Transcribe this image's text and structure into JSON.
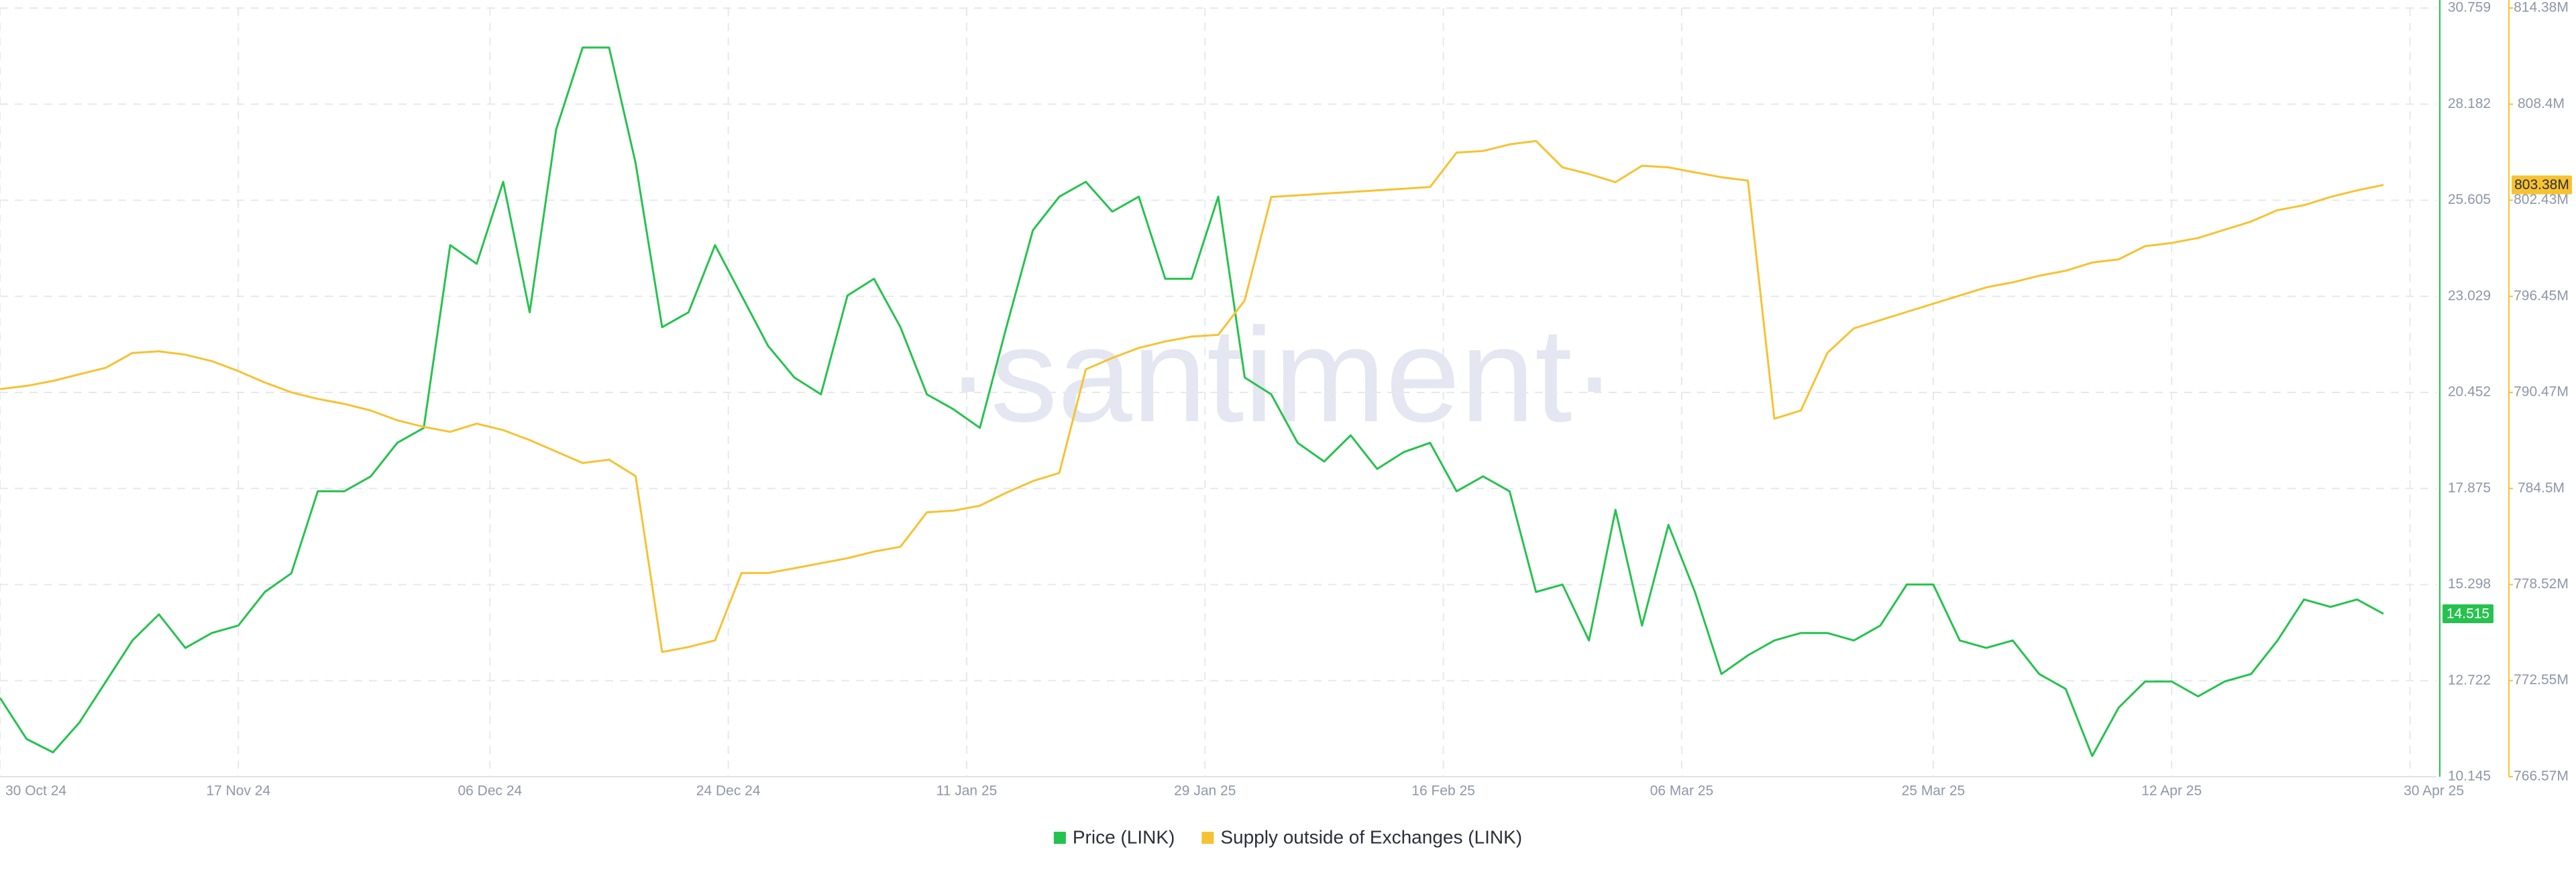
{
  "chart_data": {
    "type": "line",
    "watermark": "·santiment·",
    "x": [
      "2024-10-30",
      "2024-11-01",
      "2024-11-03",
      "2024-11-05",
      "2024-11-07",
      "2024-11-09",
      "2024-11-11",
      "2024-11-13",
      "2024-11-15",
      "2024-11-17",
      "2024-11-19",
      "2024-11-21",
      "2024-11-23",
      "2024-11-25",
      "2024-11-27",
      "2024-11-29",
      "2024-12-01",
      "2024-12-03",
      "2024-12-05",
      "2024-12-07",
      "2024-12-09",
      "2024-12-11",
      "2024-12-13",
      "2024-12-15",
      "2024-12-17",
      "2024-12-19",
      "2024-12-21",
      "2024-12-23",
      "2024-12-25",
      "2024-12-27",
      "2024-12-29",
      "2024-12-31",
      "2025-01-02",
      "2025-01-04",
      "2025-01-06",
      "2025-01-08",
      "2025-01-10",
      "2025-01-12",
      "2025-01-14",
      "2025-01-16",
      "2025-01-18",
      "2025-01-20",
      "2025-01-22",
      "2025-01-24",
      "2025-01-26",
      "2025-01-28",
      "2025-01-30",
      "2025-02-01",
      "2025-02-03",
      "2025-02-05",
      "2025-02-07",
      "2025-02-09",
      "2025-02-11",
      "2025-02-13",
      "2025-02-15",
      "2025-02-17",
      "2025-02-19",
      "2025-02-21",
      "2025-02-23",
      "2025-02-25",
      "2025-02-27",
      "2025-03-01",
      "2025-03-03",
      "2025-03-05",
      "2025-03-07",
      "2025-03-09",
      "2025-03-11",
      "2025-03-13",
      "2025-03-15",
      "2025-03-17",
      "2025-03-19",
      "2025-03-21",
      "2025-03-23",
      "2025-03-25",
      "2025-03-27",
      "2025-03-29",
      "2025-03-31",
      "2025-04-02",
      "2025-04-04",
      "2025-04-06",
      "2025-04-08",
      "2025-04-10",
      "2025-04-12",
      "2025-04-14",
      "2025-04-16",
      "2025-04-18",
      "2025-04-20",
      "2025-04-22",
      "2025-04-24",
      "2025-04-26",
      "2025-04-28"
    ],
    "xlim": [
      "2024-10-30",
      "2025-05-02"
    ],
    "xticks": [
      {
        "value": "2024-10-30",
        "label": "30 Oct 24"
      },
      {
        "value": "2024-11-17",
        "label": "17 Nov 24"
      },
      {
        "value": "2024-12-06",
        "label": "06 Dec 24"
      },
      {
        "value": "2024-12-24",
        "label": "24 Dec 24"
      },
      {
        "value": "2025-01-11",
        "label": "11 Jan 25"
      },
      {
        "value": "2025-01-29",
        "label": "29 Jan 25"
      },
      {
        "value": "2025-02-16",
        "label": "16 Feb 25"
      },
      {
        "value": "2025-03-06",
        "label": "06 Mar 25"
      },
      {
        "value": "2025-03-25",
        "label": "25 Mar 25"
      },
      {
        "value": "2025-04-12",
        "label": "12 Apr 25"
      },
      {
        "value": "2025-04-30",
        "label": "30 Apr 25"
      }
    ],
    "ylim": [
      10.145,
      30.759
    ],
    "yticks": [
      10.145,
      12.722,
      15.298,
      17.875,
      20.452,
      23.029,
      25.605,
      28.182,
      30.759
    ],
    "y2lim": [
      766.57,
      814.38
    ],
    "y2ticks": [
      {
        "value": 766.57,
        "label": "766.57M"
      },
      {
        "value": 772.55,
        "label": "772.55M"
      },
      {
        "value": 778.52,
        "label": "778.52M"
      },
      {
        "value": 784.5,
        "label": "784.5M"
      },
      {
        "value": 790.47,
        "label": "790.47M"
      },
      {
        "value": 796.45,
        "label": "796.45M"
      },
      {
        "value": 802.43,
        "label": "802.43M"
      },
      {
        "value": 808.4,
        "label": "808.4M"
      },
      {
        "value": 814.38,
        "label": "814.38M"
      }
    ],
    "grid": true,
    "series": [
      {
        "name": "Price (LINK)",
        "color": "#26c24e",
        "axis": "y",
        "last_label": "14.515",
        "values": [
          12.26,
          11.16,
          10.8,
          11.6,
          12.7,
          13.8,
          14.5,
          13.6,
          14.0,
          14.2,
          15.1,
          15.6,
          17.8,
          17.8,
          18.2,
          19.1,
          19.5,
          24.4,
          23.9,
          26.1,
          22.6,
          27.5,
          29.7,
          29.7,
          26.6,
          22.2,
          22.6,
          24.4,
          23.05,
          21.7,
          20.85,
          20.4,
          23.05,
          23.5,
          22.2,
          20.4,
          20.0,
          19.5,
          22.2,
          24.8,
          25.7,
          26.1,
          25.3,
          25.7,
          23.5,
          23.5,
          25.7,
          20.85,
          20.4,
          19.1,
          18.6,
          19.3,
          18.4,
          18.85,
          19.1,
          17.8,
          18.2,
          17.8,
          15.1,
          15.3,
          13.8,
          17.3,
          14.2,
          16.9,
          15.1,
          12.9,
          13.4,
          13.8,
          14.0,
          14.0,
          13.8,
          14.2,
          15.3,
          15.3,
          13.8,
          13.6,
          13.8,
          12.9,
          12.5,
          10.7,
          12.0,
          12.7,
          12.7,
          12.3,
          12.7,
          12.9,
          13.8,
          14.9,
          14.7,
          14.9,
          14.515
        ]
      },
      {
        "name": "Supply outside of Exchanges (LINK)",
        "color": "#f7c232",
        "axis": "y2",
        "last_label": "803.38M",
        "values": [
          790.68,
          790.88,
          791.19,
          791.6,
          792.01,
          792.93,
          793.03,
          792.82,
          792.42,
          791.8,
          791.09,
          790.48,
          790.07,
          789.76,
          789.35,
          788.74,
          788.33,
          788.02,
          788.53,
          788.13,
          787.51,
          786.8,
          786.08,
          786.29,
          785.27,
          774.33,
          774.64,
          775.05,
          779.24,
          779.24,
          779.54,
          779.85,
          780.16,
          780.57,
          780.87,
          783.02,
          783.12,
          783.43,
          784.24,
          784.96,
          785.47,
          791.91,
          792.62,
          793.24,
          793.64,
          793.95,
          794.05,
          796.2,
          802.63,
          802.73,
          802.84,
          802.94,
          803.04,
          803.14,
          803.25,
          805.39,
          805.49,
          805.9,
          806.11,
          804.47,
          804.06,
          803.55,
          804.57,
          804.47,
          804.16,
          803.86,
          803.65,
          788.84,
          789.35,
          792.93,
          794.46,
          794.97,
          795.48,
          795.99,
          796.5,
          797.01,
          797.32,
          797.73,
          798.04,
          798.55,
          798.75,
          799.57,
          799.77,
          800.08,
          800.59,
          801.1,
          801.81,
          802.12,
          802.63,
          803.04,
          803.38
        ]
      }
    ]
  }
}
